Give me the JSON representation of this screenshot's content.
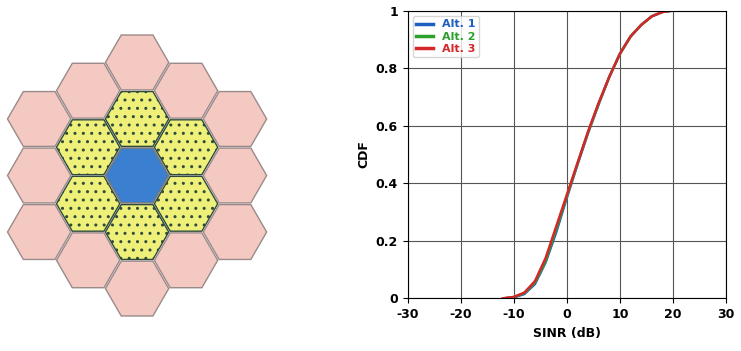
{
  "chart_data": {
    "type": "line",
    "xlabel": "SINR (dB)",
    "ylabel": "CDF",
    "xlim": [
      -30,
      30
    ],
    "xticks": [
      -30,
      -20,
      -10,
      0,
      10,
      20,
      30
    ],
    "ylim": [
      0,
      1
    ],
    "yticks": [
      0,
      0.2,
      0.4,
      0.6,
      0.8,
      1
    ],
    "grid": true,
    "legend": "upper left",
    "x": [
      -12,
      -10,
      -8,
      -6,
      -4,
      -2,
      0,
      2,
      4,
      6,
      8,
      10,
      12,
      14,
      16,
      18,
      20,
      22,
      24
    ],
    "series": [
      {
        "name": "Alt. 1",
        "color": "#1f5fbf",
        "line_style": "solid",
        "values": [
          0,
          0.003,
          0.015,
          0.05,
          0.125,
          0.23,
          0.35,
          0.465,
          0.575,
          0.675,
          0.77,
          0.85,
          0.91,
          0.95,
          0.98,
          0.995,
          1,
          1,
          1
        ]
      },
      {
        "name": "Alt. 2",
        "color": "#2ca02c",
        "line_style": "solid",
        "values": [
          0,
          0.004,
          0.018,
          0.055,
          0.13,
          0.24,
          0.355,
          0.468,
          0.578,
          0.677,
          0.77,
          0.85,
          0.91,
          0.95,
          0.98,
          0.995,
          1,
          1,
          1
        ]
      },
      {
        "name": "Alt. 3",
        "color": "#d62728",
        "line_style": "solid",
        "values": [
          0,
          0.005,
          0.02,
          0.06,
          0.14,
          0.25,
          0.36,
          0.47,
          0.58,
          0.68,
          0.77,
          0.85,
          0.91,
          0.95,
          0.98,
          0.995,
          1,
          1,
          1
        ]
      }
    ]
  }
}
